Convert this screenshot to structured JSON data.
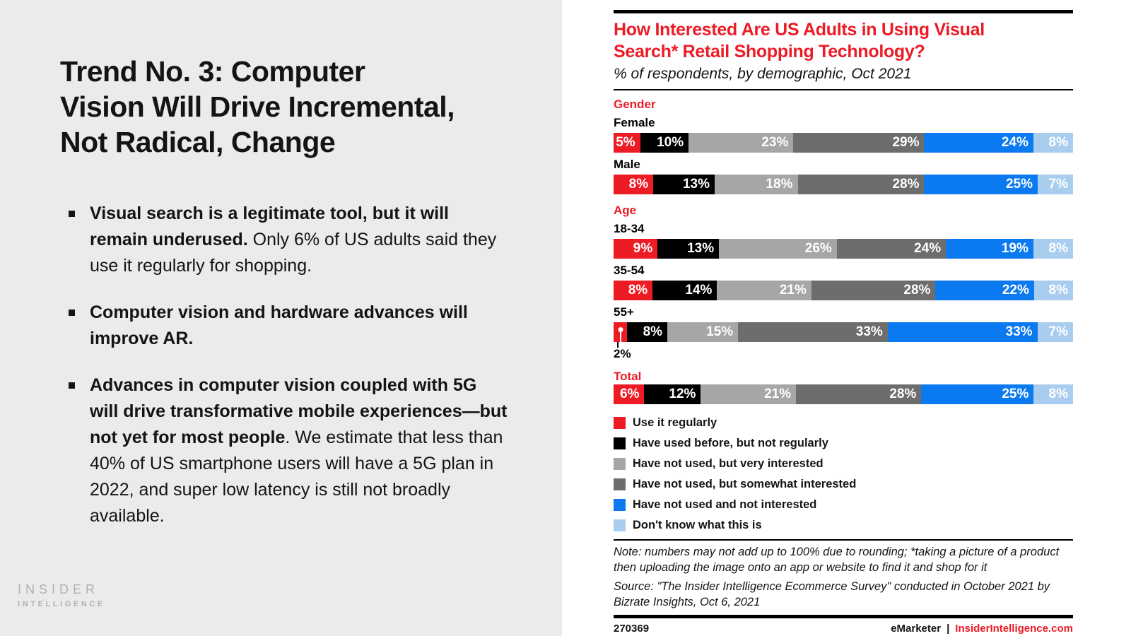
{
  "left": {
    "title_lines": [
      "Trend No. 3: Computer",
      "Vision Will Drive Incremental,",
      "Not Radical, Change"
    ],
    "bullets": [
      {
        "bold": "Visual search is a legitimate tool, but it will remain underused.",
        "rest": " Only 6% of US adults said they use it regularly for shopping."
      },
      {
        "bold": "Computer vision and hardware advances will improve AR.",
        "rest": ""
      },
      {
        "bold": "Advances in computer vision coupled with 5G will drive transformative mobile experiences—but not yet for most people",
        "rest": ". We estimate that less than 40% of US smartphone users will have a 5G plan in 2022, and super low latency is still not broadly available."
      }
    ],
    "logo": {
      "line1": "INSIDER",
      "line2": "INTELLIGENCE"
    }
  },
  "chart": {
    "title_lines": [
      "How Interested Are US Adults in Using Visual",
      "Search* Retail Shopping Technology?"
    ],
    "subtitle": "% of respondents, by demographic, Oct 2021"
  },
  "chart_data": {
    "type": "bar",
    "stacked": true,
    "orientation": "horizontal",
    "unit": "%",
    "title": "How Interested Are US Adults in Using Visual Search* Retail Shopping Technology?",
    "subtitle": "% of respondents, by demographic, Oct 2021",
    "legend_position": "bottom-left",
    "series_labels": [
      "Use it regularly",
      "Have used before, but not regularly",
      "Have not used, but very interested",
      "Have not used, but somewhat interested",
      "Have not used and not interested",
      "Don't know what this is"
    ],
    "colors": [
      "#ed1b24",
      "#000000",
      "#a6a6a6",
      "#6d6d6d",
      "#0b7af0",
      "#a9cdee"
    ],
    "groups": [
      {
        "label": "Gender",
        "rows": [
          {
            "label": "Female",
            "values": [
              5,
              10,
              23,
              29,
              24,
              8
            ]
          },
          {
            "label": "Male",
            "values": [
              8,
              13,
              18,
              28,
              25,
              7
            ]
          }
        ]
      },
      {
        "label": "Age",
        "rows": [
          {
            "label": "18-34",
            "values": [
              9,
              13,
              26,
              24,
              19,
              8
            ]
          },
          {
            "label": "35-54",
            "values": [
              8,
              14,
              21,
              28,
              22,
              8
            ]
          },
          {
            "label": "55+",
            "values": [
              2,
              8,
              15,
              33,
              33,
              7
            ],
            "callout": {
              "segment_index": 0,
              "label": "2%"
            }
          }
        ]
      },
      {
        "label": "Total",
        "rows": [
          {
            "label": "",
            "values": [
              6,
              12,
              21,
              28,
              25,
              8
            ]
          }
        ]
      }
    ]
  },
  "footer": {
    "note": "Note: numbers may not add up to 100% due to rounding; *taking a picture of a product then uploading the image onto an app or website to find it and shop for it",
    "source": "Source: \"The Insider Intelligence Ecommerce Survey\" conducted in October 2021 by Bizrate Insights, Oct 6, 2021",
    "chart_id": "270369",
    "brand": "eMarketer",
    "separator": "|",
    "site": "InsiderIntelligence.com"
  }
}
